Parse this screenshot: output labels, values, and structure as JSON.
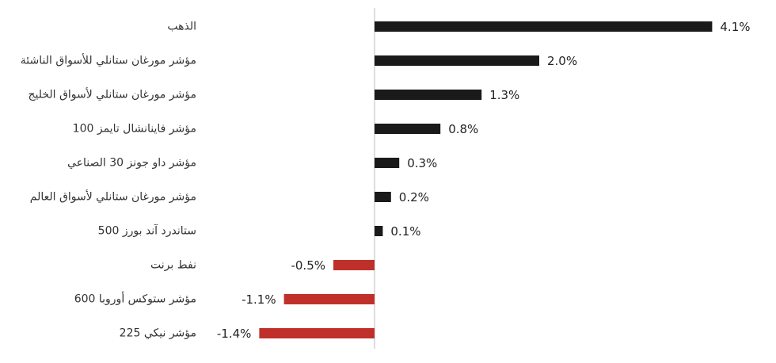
{
  "chart_data": {
    "type": "bar",
    "orientation": "horizontal",
    "categories": [
      "الذهب",
      "مؤشر مورغان ستانلي للأسواق الناشئة",
      "مؤشر مورغان ستانلي لأسواق الخليج",
      "مؤشر فاينانشال تايمز 100",
      "مؤشر داو جونز 30 الصناعي",
      "مؤشر مورغان ستانلي لأسواق العالم",
      "ستاندرد آند بورز 500",
      "نفط برنت",
      "مؤشر ستوكس أوروبا 600",
      "مؤشر نيكي 225"
    ],
    "values": [
      4.1,
      2.0,
      1.3,
      0.8,
      0.3,
      0.2,
      0.1,
      -0.5,
      -1.1,
      -1.4
    ],
    "value_labels": [
      "4.1%",
      "2.0%",
      "1.3%",
      "0.8%",
      "0.3%",
      "0.2%",
      "0.1%",
      "-0.5%",
      "-1.1%",
      "-1.4%"
    ],
    "colors": [
      "#1a1a1a",
      "#1a1a1a",
      "#1a1a1a",
      "#1a1a1a",
      "#1a1a1a",
      "#1a1a1a",
      "#1a1a1a",
      "#c0302b",
      "#c0302b",
      "#c0302b"
    ],
    "xlim": [
      -2,
      4.5
    ]
  }
}
